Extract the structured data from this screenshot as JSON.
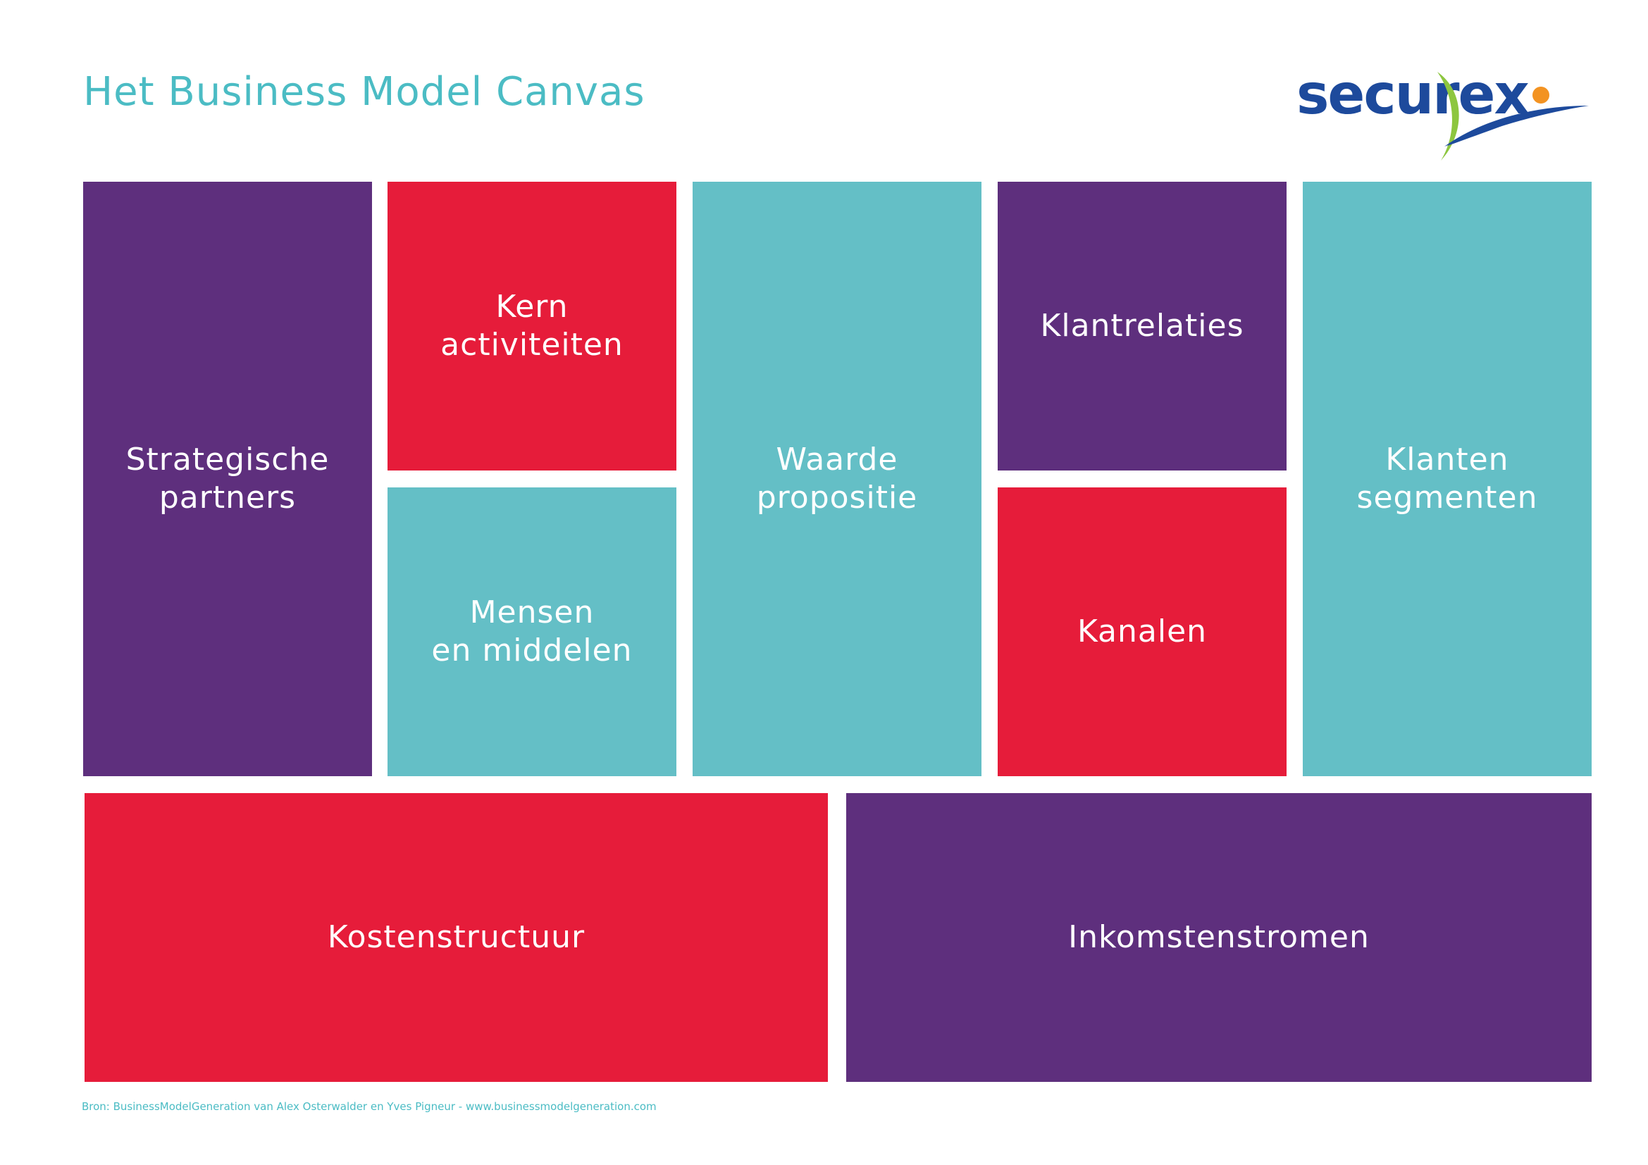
{
  "header": {
    "title": "Het Business Model Canvas",
    "logo_text": "securex"
  },
  "blocks": {
    "strategische_partners": "Strategische\npartners",
    "kern_activiteiten": "Kern\nactiviteiten",
    "mensen_en_middelen": "Mensen\nen middelen",
    "waarde_propositie": "Waarde\npropositie",
    "klantrelaties": "Klantrelaties",
    "kanalen": "Kanalen",
    "klanten_segmenten": "Klanten\nsegmenten",
    "kostenstructuur": "Kostenstructuur",
    "inkomstenstromen": "Inkomstenstromen"
  },
  "footer": {
    "source": "Bron: BusinessModelGeneration van Alex Osterwalder en Yves Pigneur - www.businessmodelgeneration.com"
  },
  "colors": {
    "purple": "#5e2f7d",
    "red": "#e61c3a",
    "teal": "#64bfc6",
    "title": "#4bbcc4",
    "logo_blue": "#1d4a9c",
    "logo_orange": "#f39322",
    "logo_green": "#8dc63f"
  }
}
